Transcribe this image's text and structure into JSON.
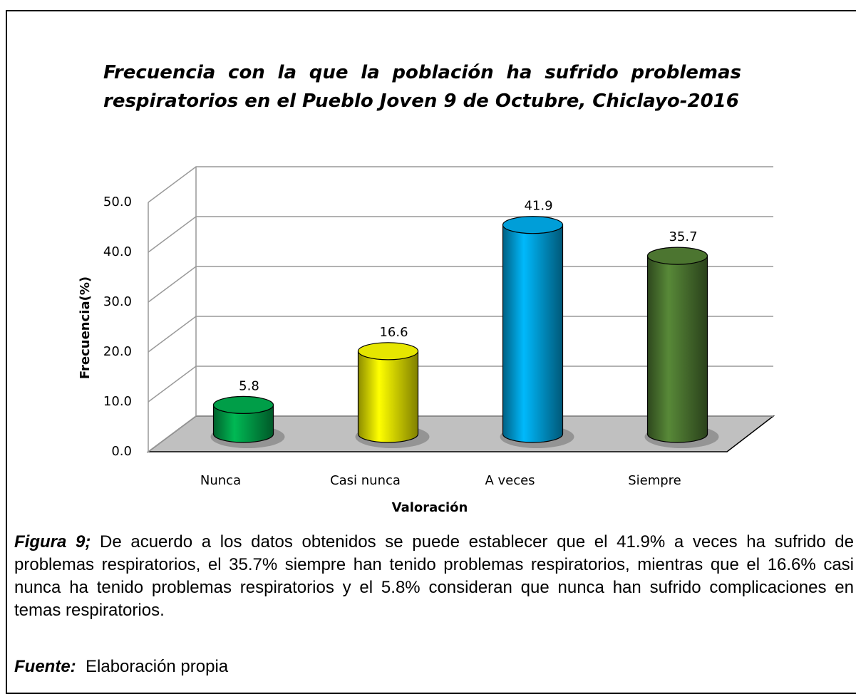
{
  "chart_data": {
    "type": "bar3d",
    "title": "Frecuencia con la que la población ha sufrido problemas respiratorios en el Pueblo Joven 9 de Octubre, Chiclayo-2016",
    "x_label": "Valoración",
    "y_label": "Frecuencia(%)",
    "categories": [
      "Nunca",
      "Casi nunca",
      "A veces",
      "Siempre"
    ],
    "values": [
      5.8,
      16.6,
      41.9,
      35.7
    ],
    "colors": [
      "#00b050",
      "#ffff00",
      "#00b0f0",
      "#548235"
    ],
    "ylim": [
      0,
      50
    ],
    "yticks": [
      {
        "value": 0,
        "label": "0.0"
      },
      {
        "value": 10,
        "label": "10.0"
      },
      {
        "value": 20,
        "label": "20.0"
      },
      {
        "value": 30,
        "label": "30.0"
      },
      {
        "value": 40,
        "label": "40.0"
      },
      {
        "value": 50,
        "label": "50.0"
      }
    ],
    "grid": true
  },
  "caption": {
    "label": "Figura 9;",
    "text": " De acuerdo a los datos obtenidos se puede establecer que el 41.9% a veces ha sufrido de problemas respiratorios, el 35.7% siempre han tenido problemas respiratorios, mientras que el 16.6% casi nunca ha tenido problemas  respiratorios y el 5.8% consideran que nunca han sufrido complicaciones en temas respiratorios."
  },
  "source": {
    "label": "Fuente:",
    "text": "  Elaboración propia"
  }
}
